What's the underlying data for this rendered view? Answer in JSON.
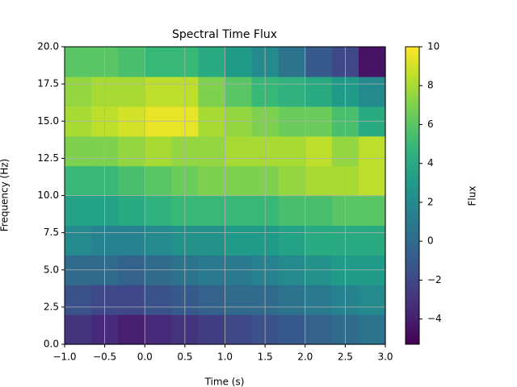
{
  "chart_data": {
    "type": "heatmap",
    "title": "Spectral Time Flux",
    "x_label": "Time (s)",
    "y_label": "Frequency (Hz)",
    "colorbar_label": "Flux",
    "colormap": "viridis",
    "grid": true,
    "xlim": [
      -1,
      3
    ],
    "xticks": [
      {
        "value": -1,
        "label": "−1.0"
      },
      {
        "value": -0.5,
        "label": "−0.5"
      },
      {
        "value": 0,
        "label": "0.0"
      },
      0.5,
      {
        "value": 1,
        "label": "1.0"
      },
      1.5,
      {
        "value": 2,
        "label": "2.0"
      },
      2.5,
      {
        "value": 3,
        "label": "3.0"
      }
    ],
    "ylim": [
      0,
      20
    ],
    "yticks": [
      {
        "value": 0,
        "label": "0.0"
      },
      2.5,
      {
        "value": 5,
        "label": "5.0"
      },
      7.5,
      {
        "value": 10,
        "label": "10.0"
      },
      12.5,
      {
        "value": 15,
        "label": "15.0"
      },
      17.5,
      {
        "value": 20,
        "label": "20.0"
      }
    ],
    "clim": [
      -5.3,
      10
    ],
    "cticks": [
      {
        "value": -4,
        "label": "−4"
      },
      {
        "value": -2,
        "label": "−2"
      },
      0,
      2,
      4,
      6,
      8,
      10
    ],
    "values": [
      [
        -3,
        -3.5,
        -4,
        -3.5,
        -3,
        -2.5,
        -2,
        -1.5,
        -1,
        -0.5,
        0,
        0.5
      ],
      [
        -1.5,
        -2,
        -2,
        -1.5,
        -1,
        -0.5,
        0,
        0,
        0.5,
        1,
        1.5,
        2
      ],
      [
        0,
        0,
        -0.5,
        0,
        0.5,
        1,
        1,
        1.5,
        2,
        2.5,
        3,
        3
      ],
      [
        2,
        1.5,
        1.5,
        2,
        2.5,
        2.5,
        3,
        3,
        3.5,
        4,
        4,
        4
      ],
      [
        3.5,
        3.5,
        4,
        4.5,
        5,
        5,
        5,
        5,
        5.5,
        5.5,
        6,
        6
      ],
      [
        5,
        5,
        5.5,
        6,
        6.5,
        7,
        7,
        7,
        7.5,
        8,
        8,
        8.5
      ],
      [
        7,
        7,
        7.5,
        8,
        7.5,
        7.5,
        8,
        8,
        8,
        8.5,
        7.5,
        8.5
      ],
      [
        8,
        8.5,
        9,
        9.5,
        9.5,
        8,
        7.5,
        7,
        6.5,
        6.5,
        5.5,
        4
      ],
      [
        7.5,
        8,
        8,
        8.5,
        8.5,
        7,
        6,
        5,
        4.5,
        4,
        3,
        2
      ],
      [
        6,
        6,
        5.5,
        5,
        5,
        4,
        3,
        2,
        0.5,
        -1,
        -2,
        -4.5
      ]
    ]
  }
}
